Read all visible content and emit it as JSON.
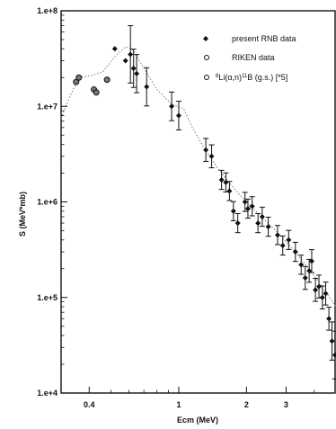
{
  "chart_data": {
    "type": "scatter",
    "title": "",
    "xlabel": "Ecm (MeV)",
    "ylabel": "S (MeV*mb)",
    "xscale": "log",
    "yscale": "log",
    "xlim": [
      0.3,
      5.0
    ],
    "ylim": [
      10000,
      100000000
    ],
    "x_tick_labels": [
      {
        "value": 0.4,
        "label": "0.4"
      },
      {
        "value": 1,
        "label": "1"
      },
      {
        "value": 2,
        "label": "2"
      },
      {
        "value": 3,
        "label": "3"
      }
    ],
    "y_tick_labels": [
      {
        "value": 100000000,
        "label": "1.e+8"
      },
      {
        "value": 10000000,
        "label": "1.e+7"
      },
      {
        "value": 1000000,
        "label": "1.e+6"
      },
      {
        "value": 100000,
        "label": "1.e+5"
      },
      {
        "value": 10000,
        "label": "1.e+4"
      }
    ],
    "legend": {
      "placement": "top-right",
      "entries": [
        {
          "marker": "filled-diamond",
          "label": "present RNB data"
        },
        {
          "marker": "open-circle",
          "label": "RIKEN data"
        },
        {
          "marker": "open-circle",
          "label_pre": "8",
          "label_main": "Li(α,n)",
          "label_sup2": "11",
          "label_post": "B (g.s.) [*5]"
        }
      ]
    },
    "series": [
      {
        "marker": "filled-diamond",
        "points": [
          {
            "x": 0.52,
            "y": 40000000,
            "err": 0
          },
          {
            "x": 0.58,
            "y": 30000000,
            "err": 0
          },
          {
            "x": 0.61,
            "y": 35000000,
            "err": 0.3
          },
          {
            "x": 0.63,
            "y": 25000000,
            "err": 0.2
          },
          {
            "x": 0.65,
            "y": 22000000,
            "err": 0.2
          },
          {
            "x": 0.72,
            "y": 16000000,
            "err": 0.2
          },
          {
            "x": 0.93,
            "y": 10000000,
            "err": 0.15
          },
          {
            "x": 1.0,
            "y": 8000000,
            "err": 0.15
          },
          {
            "x": 1.32,
            "y": 3500000,
            "err": 0.12
          },
          {
            "x": 1.4,
            "y": 3000000,
            "err": 0.12
          },
          {
            "x": 1.55,
            "y": 1700000,
            "err": 0.1
          },
          {
            "x": 1.62,
            "y": 1600000,
            "err": 0.1
          },
          {
            "x": 1.68,
            "y": 1300000,
            "err": 0.1
          },
          {
            "x": 1.75,
            "y": 800000,
            "err": 0.1
          },
          {
            "x": 1.83,
            "y": 600000,
            "err": 0.1
          },
          {
            "x": 1.97,
            "y": 1000000,
            "err": 0.1
          },
          {
            "x": 2.03,
            "y": 850000,
            "err": 0.1
          },
          {
            "x": 2.12,
            "y": 900000,
            "err": 0.1
          },
          {
            "x": 2.25,
            "y": 600000,
            "err": 0.1
          },
          {
            "x": 2.35,
            "y": 700000,
            "err": 0.1
          },
          {
            "x": 2.5,
            "y": 550000,
            "err": 0.1
          },
          {
            "x": 2.75,
            "y": 450000,
            "err": 0.1
          },
          {
            "x": 2.9,
            "y": 350000,
            "err": 0.1
          },
          {
            "x": 3.08,
            "y": 400000,
            "err": 0.1
          },
          {
            "x": 3.3,
            "y": 300000,
            "err": 0.1
          },
          {
            "x": 3.5,
            "y": 220000,
            "err": 0.1
          },
          {
            "x": 3.65,
            "y": 160000,
            "err": 0.12
          },
          {
            "x": 3.8,
            "y": 190000,
            "err": 0.12
          },
          {
            "x": 3.9,
            "y": 240000,
            "err": 0.12
          },
          {
            "x": 4.05,
            "y": 120000,
            "err": 0.12
          },
          {
            "x": 4.2,
            "y": 130000,
            "err": 0.12
          },
          {
            "x": 4.35,
            "y": 100000,
            "err": 0.12
          },
          {
            "x": 4.5,
            "y": 110000,
            "err": 0.12
          },
          {
            "x": 4.65,
            "y": 60000,
            "err": 0.12
          },
          {
            "x": 4.8,
            "y": 35000,
            "err": 0.2
          },
          {
            "x": 4.95,
            "y": 25000,
            "err": 0.25
          }
        ]
      },
      {
        "marker": "open-circle",
        "points": [
          {
            "x": 0.35,
            "y": 18000000
          },
          {
            "x": 0.36,
            "y": 20000000
          },
          {
            "x": 0.42,
            "y": 15000000
          },
          {
            "x": 0.43,
            "y": 14000000
          },
          {
            "x": 0.48,
            "y": 19000000
          }
        ]
      }
    ],
    "curve": {
      "style": "dotted",
      "points": [
        {
          "x": 0.3,
          "y": 7500000
        },
        {
          "x": 0.33,
          "y": 13000000
        },
        {
          "x": 0.36,
          "y": 20000000
        },
        {
          "x": 0.41,
          "y": 21000000
        },
        {
          "x": 0.46,
          "y": 23000000
        },
        {
          "x": 0.52,
          "y": 33000000
        },
        {
          "x": 0.58,
          "y": 42000000
        },
        {
          "x": 0.62,
          "y": 40000000
        },
        {
          "x": 0.7,
          "y": 25000000
        },
        {
          "x": 0.8,
          "y": 15000000
        },
        {
          "x": 0.93,
          "y": 10500000
        },
        {
          "x": 1.05,
          "y": 9500000
        },
        {
          "x": 1.15,
          "y": 6000000
        },
        {
          "x": 1.3,
          "y": 3600000
        },
        {
          "x": 1.5,
          "y": 2200000
        },
        {
          "x": 1.8,
          "y": 1300000
        },
        {
          "x": 2.2,
          "y": 800000
        },
        {
          "x": 2.7,
          "y": 500000
        },
        {
          "x": 3.3,
          "y": 300000
        },
        {
          "x": 4.0,
          "y": 170000
        },
        {
          "x": 5.0,
          "y": 80000
        }
      ]
    }
  }
}
